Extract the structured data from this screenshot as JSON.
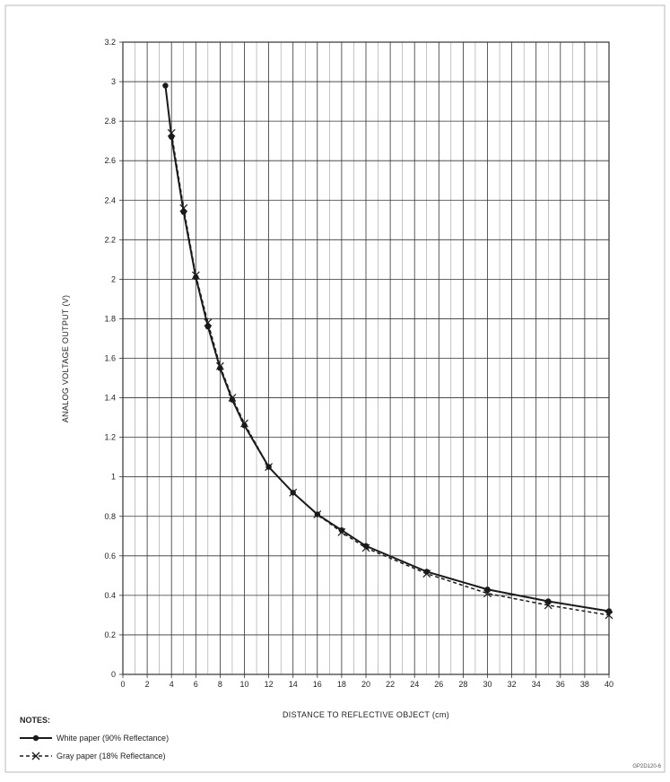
{
  "chart_data": {
    "type": "line",
    "title": "",
    "xlabel": "DISTANCE TO REFLECTIVE OBJECT (cm)",
    "ylabel": "ANALOG VOLTAGE OUTPUT (V)",
    "xlim": [
      0,
      40
    ],
    "ylim": [
      0,
      3.2
    ],
    "x_ticks": [
      "0",
      "2",
      "4",
      "6",
      "8",
      "10",
      "12",
      "14",
      "16",
      "18",
      "20",
      "22",
      "24",
      "26",
      "28",
      "30",
      "32",
      "34",
      "36",
      "38",
      "40"
    ],
    "y_ticks": [
      "0",
      "0.2",
      "0.4",
      "0.6",
      "0.8",
      "1",
      "1.2",
      "1.4",
      "1.6",
      "1.8",
      "2",
      "2.2",
      "2.4",
      "2.6",
      "2.8",
      "3",
      "3.2"
    ],
    "grid": true,
    "legend_position": "bottom-left",
    "series": [
      {
        "name": "White paper (90% Reflectance)",
        "line_style": "solid",
        "marker": "circle",
        "x": [
          3.5,
          4,
          5,
          6,
          7,
          8,
          9,
          10,
          12,
          14,
          16,
          18,
          20,
          25,
          30,
          35,
          40
        ],
        "y": [
          2.98,
          2.72,
          2.34,
          2.01,
          1.76,
          1.55,
          1.39,
          1.26,
          1.05,
          0.92,
          0.81,
          0.73,
          0.65,
          0.52,
          0.43,
          0.37,
          0.32
        ]
      },
      {
        "name": "Gray paper (18% Reflectance)",
        "line_style": "dashed",
        "marker": "x",
        "x": [
          4,
          5,
          6,
          7,
          8,
          9,
          10,
          12,
          14,
          16,
          18,
          20,
          25,
          30,
          35,
          40
        ],
        "y": [
          2.74,
          2.36,
          2.02,
          1.78,
          1.56,
          1.4,
          1.27,
          1.05,
          0.92,
          0.81,
          0.72,
          0.64,
          0.51,
          0.41,
          0.35,
          0.3
        ]
      }
    ]
  },
  "notes": {
    "title": "NOTES:"
  },
  "figure_id": "GP2D120-6",
  "colors": {
    "frame": "#b8b8b8",
    "grid": "#333333",
    "minor_grid": "#888888",
    "series": "#1a1a1a"
  }
}
